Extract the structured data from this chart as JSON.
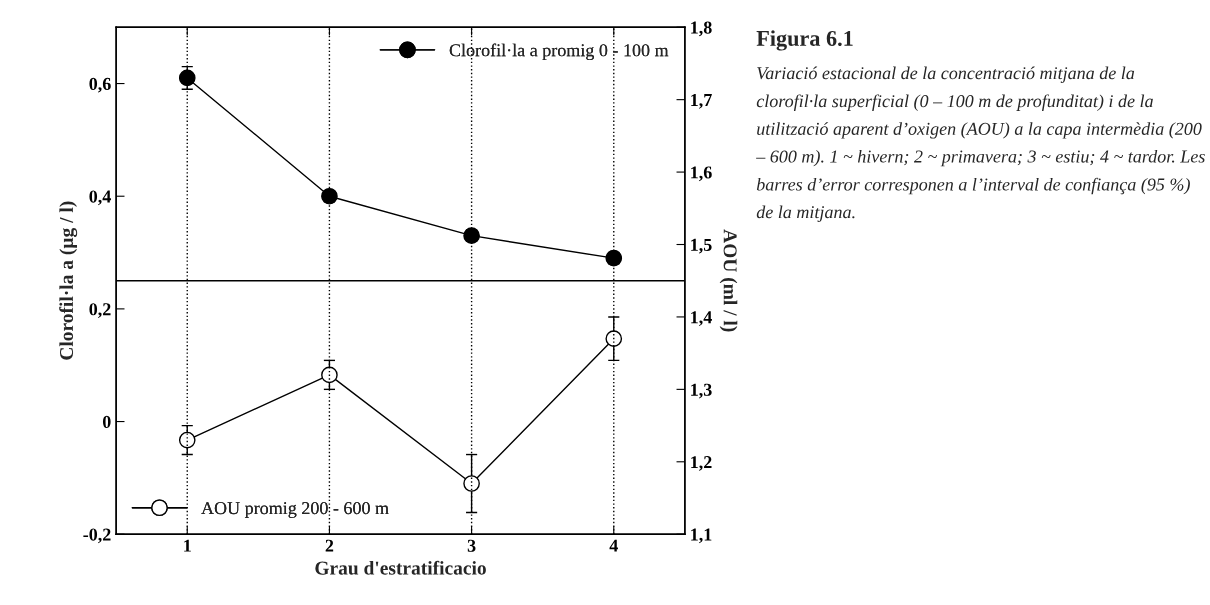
{
  "chart_data": {
    "type": "line",
    "xlabel": "Grau d'estratificacio",
    "ylabel": "Clorofil·la a (µg / l)",
    "y2label": "AOU (ml / l)",
    "x": [
      1,
      2,
      3,
      4
    ],
    "xlim": [
      0.5,
      4.5
    ],
    "xticks": [
      1,
      2,
      3,
      4
    ],
    "ylim": [
      -0.2,
      0.7
    ],
    "yticks": [
      {
        "value": -0.2,
        "label": "-0,2"
      },
      0,
      {
        "value": 0.2,
        "label": "0,2"
      },
      {
        "value": 0.4,
        "label": "0,4"
      },
      {
        "value": 0.6,
        "label": "0,6"
      }
    ],
    "y2lim": [
      1.1,
      1.8
    ],
    "y2ticks": [
      {
        "value": 1.1,
        "label": "1,1"
      },
      {
        "value": 1.2,
        "label": "1,2"
      },
      {
        "value": 1.3,
        "label": "1,3"
      },
      {
        "value": 1.4,
        "label": "1,4"
      },
      {
        "value": 1.5,
        "label": "1,5"
      },
      {
        "value": 1.6,
        "label": "1,6"
      },
      {
        "value": 1.7,
        "label": "1,7"
      },
      {
        "value": 1.8,
        "label": "1,8"
      }
    ],
    "series": [
      {
        "name": "Clorofil·la a promig 0 - 100 m",
        "color": "#000000",
        "values": [
          0.61,
          0.4,
          0.33,
          0.29
        ],
        "errors": [
          0.02,
          0.01,
          0.01,
          0.01
        ]
      },
      {
        "name": "AOU promig 200 - 600 m",
        "color": "#ffffff",
        "axis": "y2",
        "values": [
          1.23,
          1.32,
          1.17,
          1.37
        ],
        "errors": [
          0.02,
          0.02,
          0.04,
          0.03
        ]
      }
    ],
    "marker": "circle",
    "line_style": "solid",
    "legend": "top right",
    "grid": "x",
    "ref_lines": [
      {
        "axis": "y",
        "value": 0.25,
        "color": "#000000",
        "line_style": "solid"
      }
    ],
    "annotations": [
      "Figura 6.1",
      "Variació estacional de la concentració mitjana de la clorofil·la superficial (0 – 100 m de profunditat) i de la utilització aparent d’oxigen (AOU) a la capa intermèdia (200 – 600 m). 1 ~ hivern; 2 ~ primavera; 3 ~ estiu; 4 ~ tardor. Les barres d’error corresponen a l’interval de confiança (95 %) de la mitjana."
    ]
  }
}
